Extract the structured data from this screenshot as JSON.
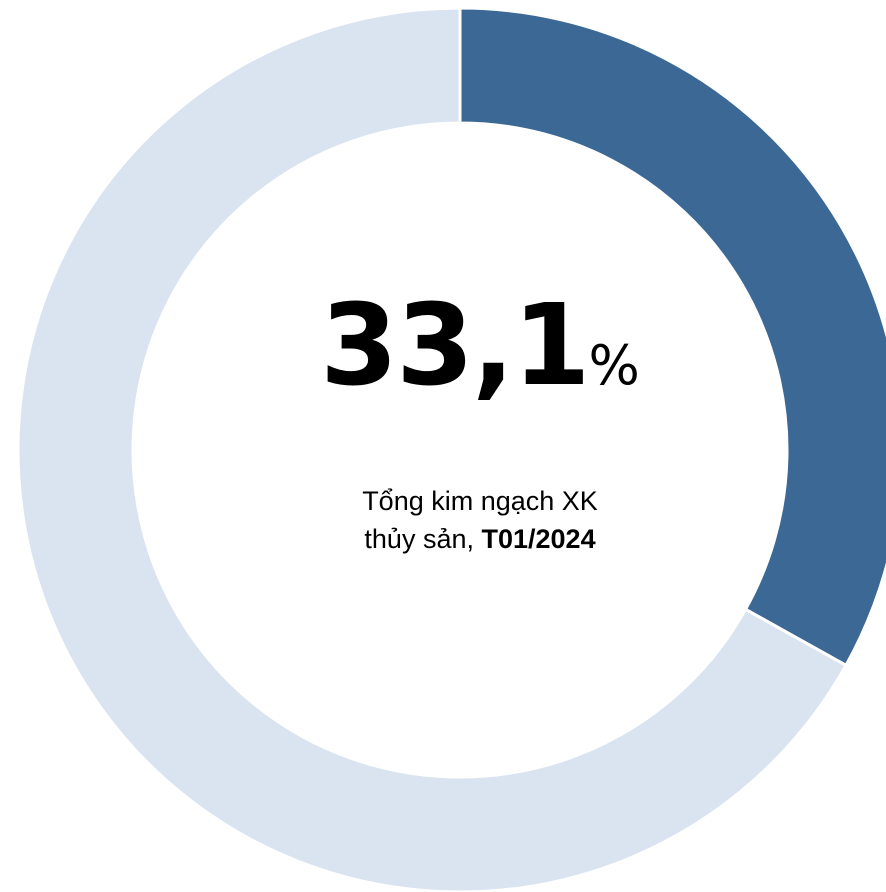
{
  "chart_data": {
    "type": "pie",
    "variant": "donut",
    "slices": [
      {
        "value": 33.1,
        "color": "#3b6894"
      },
      {
        "value": 66.9,
        "color": "#d9e4f0"
      }
    ],
    "center": {
      "value": "33,1",
      "unit": "%",
      "caption_line1": "Tổng kim ngạch XK",
      "caption_line2_prefix": "thủy sản,",
      "caption_line2_bold": "T01/2024"
    },
    "start_angle": "12 o'clock",
    "direction": "clockwise",
    "legend": "none"
  }
}
